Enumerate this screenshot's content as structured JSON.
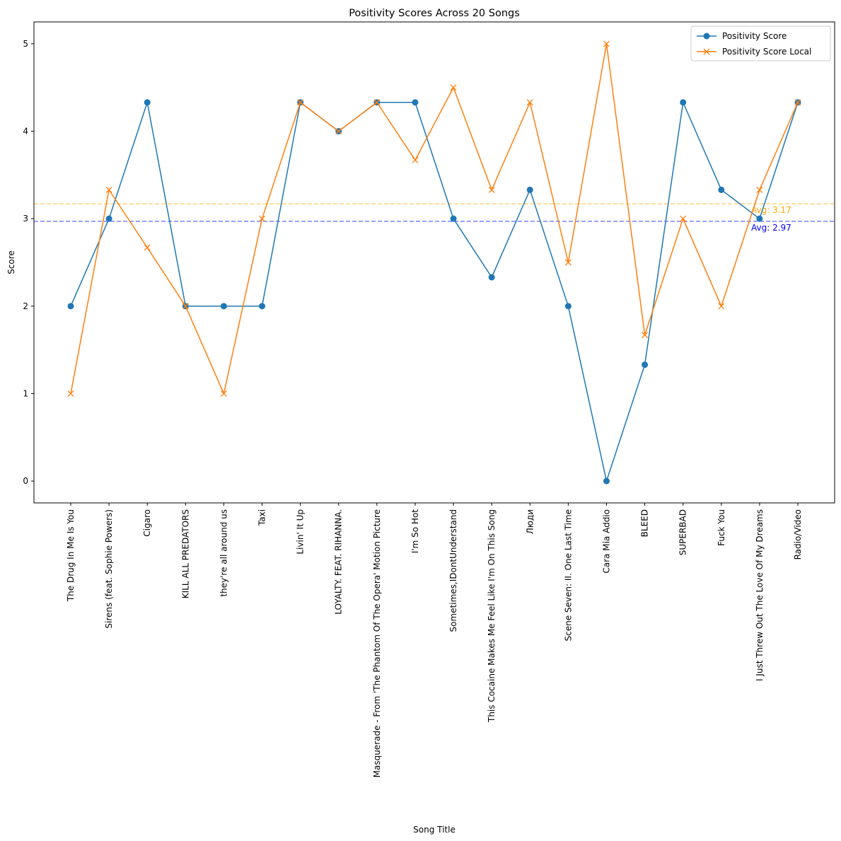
{
  "chart_data": {
    "type": "line",
    "title": "Positivity Scores Across 20 Songs",
    "xlabel": "Song Title",
    "ylabel": "Score",
    "ylim": [
      -0.25,
      5.25
    ],
    "yticks": [
      0,
      1,
      2,
      3,
      4,
      5
    ],
    "grid": false,
    "legend_position": "top-right",
    "categories": [
      "The Drug In Me Is You",
      "Sirens (feat. Sophie Powers)",
      "Cigaro",
      "KILL ALL PREDATORS",
      "they're all around us",
      "Taxi",
      "Livin' It Up",
      "LOYALTY. FEAT. RIHANNA.",
      "Masquerade - From 'The Phantom Of The Opera' Motion Picture",
      "I'm So Hot",
      "Sometimes,IDontUnderstand",
      "This Cocaine Makes Me Feel Like I'm On This Song",
      "Люди",
      "Scene Seven: II. One Last Time",
      "Cara Mia Addio",
      "BLEED",
      "SUPERBAD",
      "Fuck You",
      "I Just Threw Out The Love Of My Dreams",
      "Radio/Video"
    ],
    "series": [
      {
        "name": "Positivity Score",
        "color": "#1f77b4",
        "marker": "circle",
        "values": [
          2,
          3,
          4.33,
          2,
          2,
          2,
          4.33,
          4,
          4.33,
          4.33,
          3,
          2.33,
          3.33,
          2,
          0,
          1.33,
          4.33,
          3.33,
          3,
          4.33
        ]
      },
      {
        "name": "Positivity Score Local",
        "color": "#ff7f0e",
        "marker": "x",
        "values": [
          1,
          3.33,
          2.67,
          2,
          1,
          3,
          4.33,
          4,
          4.33,
          3.67,
          4.5,
          3.33,
          4.33,
          2.5,
          5,
          1.67,
          3,
          2,
          3.33,
          4.33
        ]
      }
    ],
    "reference_lines": [
      {
        "label": "Avg: 3.17",
        "value": 3.17,
        "color": "#ffa500"
      },
      {
        "label": "Avg: 2.97",
        "value": 2.97,
        "color": "#0000ff"
      }
    ]
  }
}
